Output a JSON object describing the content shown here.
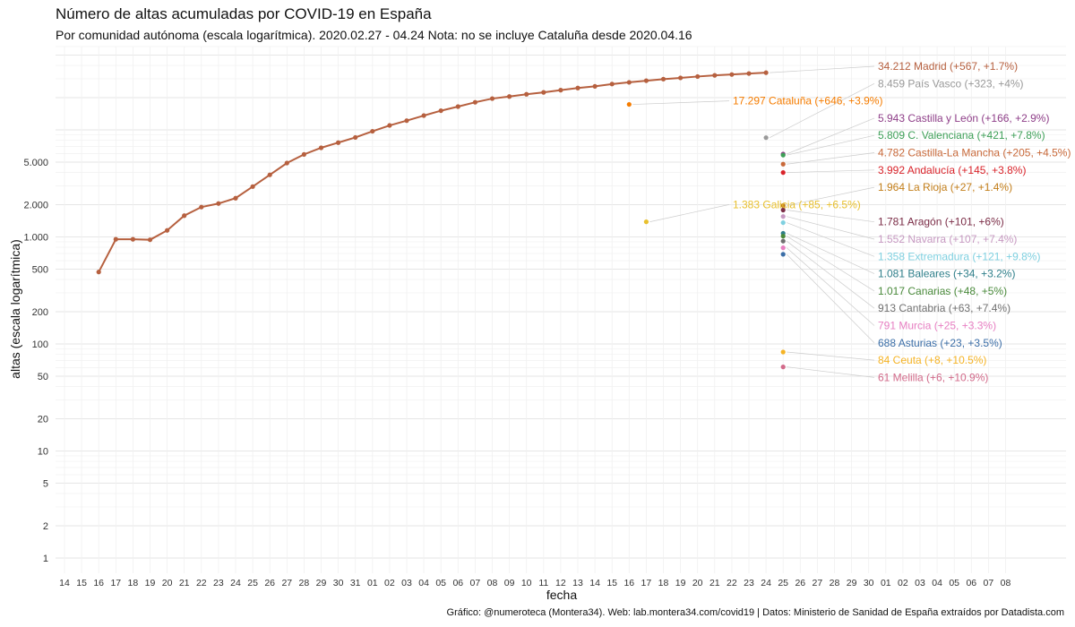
{
  "title": "Número de altas acumuladas por COVID-19 en España",
  "subtitle": "Por comunidad autónoma (escala logarítmica). 2020.02.27 - 04.24 Nota: no se incluye Cataluña desde 2020.04.16",
  "caption": "Gráfico: @numeroteca (Montera34). Web: lab.montera34.com/covid19 | Datos: Ministerio de Sanidad de España extraídos por Datadista.com",
  "chart_data": {
    "type": "line",
    "title": "Número de altas acumuladas por COVID-19 en España",
    "xlabel": "fecha",
    "ylabel": "altas (escala logarítmica)",
    "y_scale": "log",
    "ylim": [
      0.72,
      60000
    ],
    "grid": true,
    "legend": "direct labels at line ends (right)",
    "x_tick_labels": [
      "14",
      "15",
      "16",
      "17",
      "18",
      "19",
      "20",
      "21",
      "22",
      "23",
      "24",
      "25",
      "26",
      "27",
      "28",
      "29",
      "30",
      "31",
      "01",
      "02",
      "03",
      "04",
      "05",
      "06",
      "07",
      "08",
      "09",
      "10",
      "11",
      "12",
      "13",
      "14",
      "15",
      "16",
      "17",
      "18",
      "19",
      "20",
      "21",
      "22",
      "23",
      "24",
      "25",
      "26",
      "27",
      "28",
      "29",
      "30",
      "01",
      "02",
      "03",
      "04",
      "05",
      "06",
      "07",
      "08"
    ],
    "y_ticks": [
      1,
      2,
      5,
      10,
      20,
      50,
      100,
      200,
      500,
      1000,
      2000,
      5000
    ],
    "y_tick_labels": [
      "1",
      "2",
      "5",
      "10",
      "20",
      "50",
      "100",
      "200",
      "500",
      "1.000",
      "2.000",
      "5.000"
    ],
    "series": [
      {
        "name": "Madrid",
        "label": "34.212 Madrid (+567, +1.7%)",
        "color": "#b6603f",
        "start": "16",
        "end": "24",
        "values": [
          470,
          950,
          950,
          940,
          1150,
          1580,
          1900,
          2050,
          2300,
          2950,
          3800,
          4900,
          5900,
          6800,
          7600,
          8500,
          9700,
          11000,
          12200,
          13600,
          15100,
          16500,
          18100,
          19600,
          20500,
          21500,
          22400,
          23500,
          24600,
          25500,
          26800,
          27800,
          28800,
          29800,
          30600,
          31500,
          32300,
          32900,
          33600,
          34212
        ]
      },
      {
        "name": "País Vasco",
        "label": "8.459 País Vasco (+323, +4%)",
        "color": "#999999",
        "start": "16",
        "end": "24",
        "values": [
          null,
          null,
          null,
          null,
          null,
          null,
          null,
          null,
          null,
          null,
          null,
          null,
          null,
          null,
          null,
          null,
          null,
          null,
          null,
          null,
          null,
          null,
          null,
          null,
          null,
          null,
          null,
          null,
          null,
          null,
          null,
          null,
          null,
          null,
          null,
          null,
          null,
          null,
          null,
          8459
        ]
      },
      {
        "name": "Cataluña",
        "label": "17.297 Cataluña (+646, +3.9%)",
        "color": "#f57c00",
        "start": "16",
        "end": "16",
        "values": [
          null,
          null,
          null,
          null,
          null,
          null,
          null,
          null,
          null,
          null,
          null,
          null,
          null,
          null,
          null,
          null,
          null,
          null,
          null,
          null,
          null,
          null,
          null,
          null,
          null,
          null,
          null,
          null,
          null,
          null,
          null,
          17297
        ]
      },
      {
        "name": "Castilla y León",
        "label": "5.943 Castilla y León (+166, +2.9%)",
        "color": "#8e3e88",
        "end": "24",
        "values": [
          5943
        ]
      },
      {
        "name": "C. Valenciana",
        "label": "5.809 C. Valenciana (+421, +7.8%)",
        "color": "#3d9f57",
        "end": "24",
        "values": [
          5809
        ]
      },
      {
        "name": "Castilla-La Mancha",
        "label": "4.782 Castilla-La Mancha (+205, +4.5%)",
        "color": "#c8693a",
        "end": "24",
        "values": [
          4782
        ]
      },
      {
        "name": "Andalucía",
        "label": "3.992 Andalucía (+145, +3.8%)",
        "color": "#d9232a",
        "end": "24",
        "values": [
          3992
        ]
      },
      {
        "name": "La Rioja",
        "label": "1.964 La Rioja (+27, +1.4%)",
        "color": "#c27d18",
        "end": "24",
        "values": [
          1964
        ]
      },
      {
        "name": "Galicia",
        "label": "1.383 Galicia (+85, +6.5%)",
        "color": "#e8c02e",
        "end": "16",
        "values": [
          1383
        ]
      },
      {
        "name": "Aragón",
        "label": "1.781 Aragón (+101, +6%)",
        "color": "#7b2d47",
        "end": "24",
        "values": [
          1781
        ]
      },
      {
        "name": "Navarra",
        "label": "1.552 Navarra (+107, +7.4%)",
        "color": "#c79ac2",
        "end": "24",
        "values": [
          1552
        ]
      },
      {
        "name": "Extremadura",
        "label": "1.358 Extremadura (+121, +9.8%)",
        "color": "#7fd0e0",
        "end": "24",
        "values": [
          1358
        ]
      },
      {
        "name": "Baleares",
        "label": "1.081 Baleares (+34, +3.2%)",
        "color": "#2f7f8a",
        "end": "24",
        "values": [
          1081
        ]
      },
      {
        "name": "Canarias",
        "label": "1.017 Canarias (+48, +5%)",
        "color": "#4a8a3b",
        "end": "24",
        "values": [
          1017
        ]
      },
      {
        "name": "Cantabria",
        "label": "913 Cantabria (+63, +7.4%)",
        "color": "#6f6f6f",
        "end": "24",
        "values": [
          913
        ]
      },
      {
        "name": "Murcia",
        "label": "791 Murcia (+25, +3.3%)",
        "color": "#e77fc2",
        "end": "24",
        "values": [
          791
        ]
      },
      {
        "name": "Asturias",
        "label": "688 Asturias (+23, +3.5%)",
        "color": "#3b6ea7",
        "end": "24",
        "values": [
          688
        ]
      },
      {
        "name": "Ceuta",
        "label": "84 Ceuta (+8, +10.5%)",
        "color": "#f5b324",
        "end": "24",
        "values": [
          84
        ]
      },
      {
        "name": "Melilla",
        "label": "61 Melilla (+6, +10.9%)",
        "color": "#d26a8a",
        "end": "24",
        "values": [
          61
        ]
      }
    ]
  }
}
